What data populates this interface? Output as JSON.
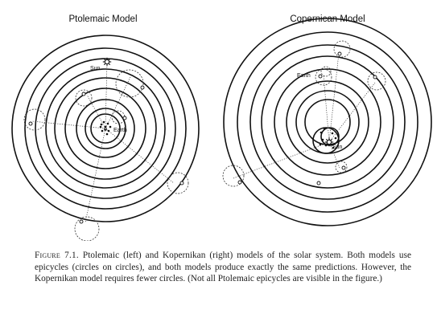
{
  "figure": {
    "panels": [
      {
        "title": "Ptolemaic Model",
        "labels": {
          "sun": "Sun",
          "earth": "Earth"
        }
      },
      {
        "title": "Copernican Model",
        "labels": {
          "sun": "Sun",
          "earth": "Earth"
        }
      }
    ],
    "caption": {
      "label": "Figure 7.1.",
      "text": "Ptolemaic (left) and Kopernikan (right) models of the solar system. Both models use epicycles (circles on circles), and both models produce exactly the same predictions. However, the Kopernikan model requires fewer circles. (Not all Ptolemaic epicycles are visible in the figure.)"
    }
  }
}
